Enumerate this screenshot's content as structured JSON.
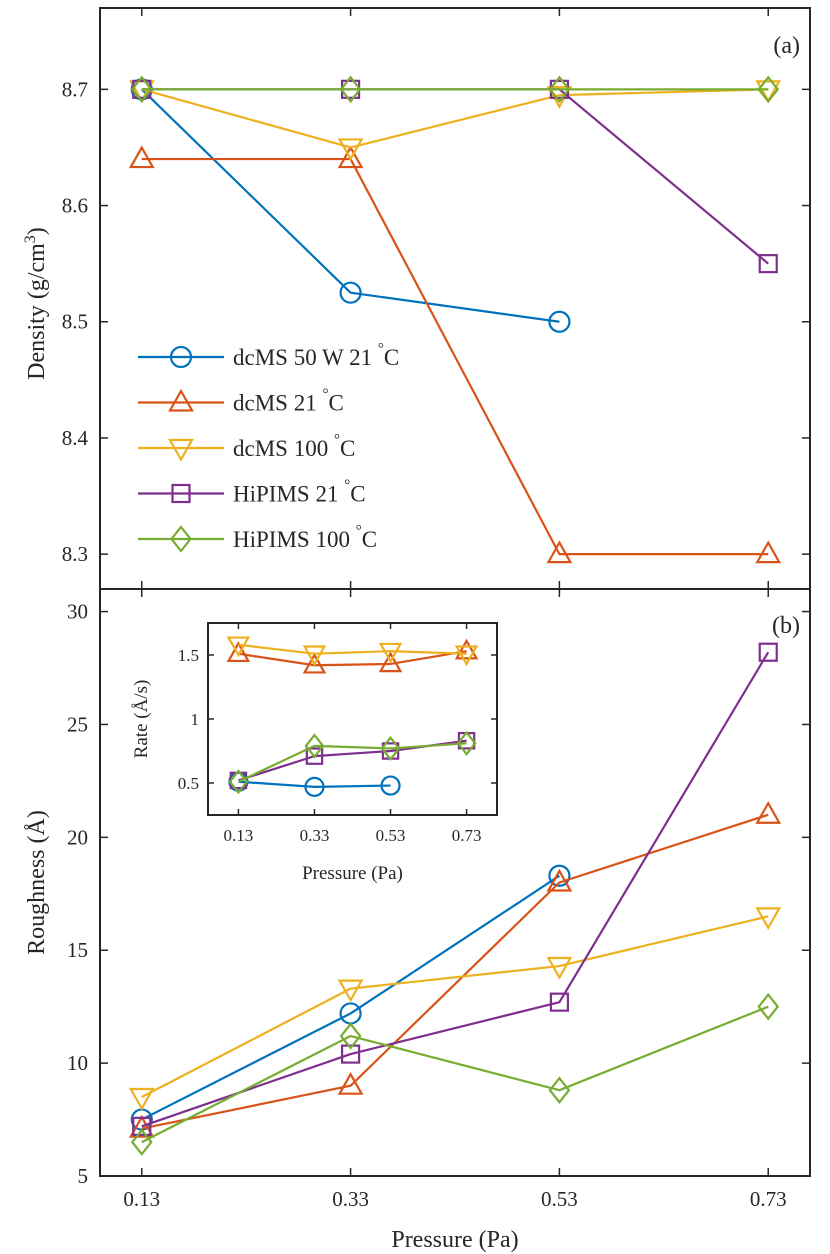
{
  "chart_data": [
    {
      "panel": "(a)",
      "type": "line",
      "xlabel": "",
      "ylabel": "Density (g/cm",
      "ylabel_sup": "3",
      "ylabel_end": ")",
      "x": [
        0.13,
        0.33,
        0.53,
        0.73
      ],
      "x_tick_labels": [
        "0.13",
        "0.33",
        "0.53",
        "0.73"
      ],
      "xlim": [
        0.09,
        0.77
      ],
      "ylim": [
        8.27,
        8.77
      ],
      "y_ticks": [
        8.3,
        8.4,
        8.5,
        8.6,
        8.7
      ],
      "y_tick_labels": [
        "8.3",
        "8.4",
        "8.5",
        "8.6",
        "8.7"
      ],
      "legend_position": "middle-left",
      "series": [
        {
          "name": "dcMS 50 W 21 °C",
          "label_main": "dcMS 50 W 21 ",
          "label_unit": "C",
          "color": "#0072BD",
          "marker": "circle",
          "values": [
            8.7,
            8.525,
            8.5,
            null
          ]
        },
        {
          "name": "dcMS 21 °C",
          "label_main": "dcMS 21 ",
          "label_unit": "C",
          "color": "#D95319",
          "marker": "triangle-up",
          "values": [
            8.64,
            8.64,
            8.3,
            8.3
          ]
        },
        {
          "name": "dcMS 100 °C",
          "label_main": "dcMS 100 ",
          "label_unit": "C",
          "color": "#EDB120",
          "marker": "triangle-down",
          "values": [
            8.7,
            8.65,
            8.695,
            8.7
          ]
        },
        {
          "name": "HiPIMS 21 °C",
          "label_main": "HiPIMS 21 ",
          "label_unit": "C",
          "color": "#7E2F8E",
          "marker": "square",
          "values": [
            8.7,
            8.7,
            8.7,
            8.55
          ]
        },
        {
          "name": "HiPIMS 100 °C",
          "label_main": "HiPIMS 100 ",
          "label_unit": "C",
          "color": "#77AC30",
          "marker": "diamond",
          "values": [
            8.7,
            8.7,
            8.7,
            8.7
          ]
        }
      ]
    },
    {
      "panel": "(b)",
      "type": "line",
      "xlabel": "Pressure (Pa)",
      "ylabel": "Roughness (Å)",
      "x": [
        0.13,
        0.33,
        0.53,
        0.73
      ],
      "x_tick_labels": [
        "0.13",
        "0.33",
        "0.53",
        "0.73"
      ],
      "xlim": [
        0.09,
        0.77
      ],
      "ylim": [
        5,
        31
      ],
      "y_ticks": [
        5,
        10,
        15,
        20,
        25,
        30
      ],
      "y_tick_labels": [
        "5",
        "10",
        "15",
        "20",
        "25",
        "30"
      ],
      "series": [
        {
          "name": "dcMS 50 W 21 °C",
          "color": "#0072BD",
          "marker": "circle",
          "values": [
            7.5,
            12.2,
            18.3,
            null
          ]
        },
        {
          "name": "dcMS 21 °C",
          "color": "#D95319",
          "marker": "triangle-up",
          "values": [
            7.1,
            9.0,
            18.0,
            21.0
          ]
        },
        {
          "name": "dcMS 100 °C",
          "color": "#EDB120",
          "marker": "triangle-down",
          "values": [
            8.5,
            13.3,
            14.3,
            16.5
          ]
        },
        {
          "name": "HiPIMS 21 °C",
          "color": "#7E2F8E",
          "marker": "square",
          "values": [
            7.2,
            10.4,
            12.7,
            28.2
          ]
        },
        {
          "name": "HiPIMS 100 °C",
          "color": "#77AC30",
          "marker": "diamond",
          "values": [
            6.5,
            11.2,
            8.8,
            12.5
          ]
        }
      ]
    },
    {
      "panel": "inset",
      "type": "line",
      "xlabel": "Pressure (Pa)",
      "ylabel": "Rate (Å/s)",
      "x": [
        0.13,
        0.33,
        0.53,
        0.73
      ],
      "x_tick_labels": [
        "0.13",
        "0.33",
        "0.53",
        "0.73"
      ],
      "xlim": [
        0.05,
        0.81
      ],
      "ylim": [
        0.25,
        1.75
      ],
      "y_ticks": [
        0.5,
        1.0,
        1.5
      ],
      "y_tick_labels": [
        "0.5",
        "1",
        "1.5"
      ],
      "series": [
        {
          "name": "dcMS 50 W 21 °C",
          "color": "#0072BD",
          "marker": "circle",
          "values": [
            0.51,
            0.47,
            0.48,
            null
          ]
        },
        {
          "name": "dcMS 21 °C",
          "color": "#D95319",
          "marker": "triangle-up",
          "values": [
            1.51,
            1.42,
            1.43,
            1.53
          ]
        },
        {
          "name": "dcMS 100 °C",
          "color": "#EDB120",
          "marker": "triangle-down",
          "values": [
            1.58,
            1.51,
            1.53,
            1.51
          ]
        },
        {
          "name": "HiPIMS 21 °C",
          "color": "#7E2F8E",
          "marker": "square",
          "values": [
            0.52,
            0.71,
            0.75,
            0.83
          ]
        },
        {
          "name": "HiPIMS 100 °C",
          "color": "#77AC30",
          "marker": "diamond",
          "values": [
            0.51,
            0.79,
            0.77,
            0.81
          ]
        }
      ]
    }
  ]
}
